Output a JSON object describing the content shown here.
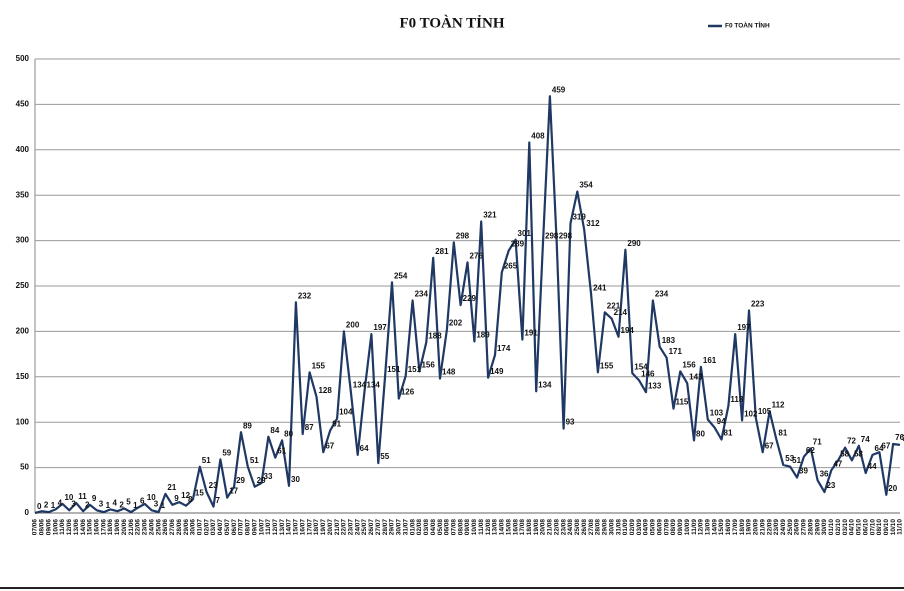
{
  "chart_data": {
    "type": "line",
    "title": "F0 TOÀN TỈNH",
    "categories": [
      "07/06",
      "08/06",
      "09/06",
      "10/06",
      "11/06",
      "12/06",
      "13/06",
      "14/06",
      "15/06",
      "16/06",
      "17/06",
      "18/06",
      "19/06",
      "20/06",
      "21/06",
      "22/06",
      "23/06",
      "24/06",
      "25/06",
      "26/06",
      "27/06",
      "28/06",
      "29/06",
      "30/06",
      "01/07",
      "02/07",
      "03/07",
      "04/07",
      "05/07",
      "06/07",
      "07/07",
      "08/07",
      "09/07",
      "10/07",
      "11/07",
      "12/07",
      "13/07",
      "14/07",
      "15/07",
      "16/07",
      "17/07",
      "18/07",
      "19/07",
      "20/07",
      "21/07",
      "22/07",
      "23/07",
      "24/07",
      "25/07",
      "26/07",
      "27/07",
      "28/07",
      "29/07",
      "30/07",
      "31/07",
      "01/08",
      "02/08",
      "03/08",
      "04/08",
      "05/08",
      "06/08",
      "07/08",
      "08/08",
      "09/08",
      "10/08",
      "11/08",
      "12/08",
      "13/08",
      "14/08",
      "15/08",
      "16/08",
      "17/08",
      "18/08",
      "19/08",
      "20/08",
      "21/08",
      "22/08",
      "23/08",
      "24/08",
      "25/08",
      "26/08",
      "27/08",
      "28/08",
      "29/08",
      "30/08",
      "31/08",
      "01/09",
      "02/09",
      "03/09",
      "04/09",
      "05/09",
      "06/09",
      "07/09",
      "08/09",
      "09/09",
      "10/09",
      "11/09",
      "12/09",
      "13/09",
      "14/09",
      "15/09",
      "16/09",
      "17/09",
      "18/09",
      "19/09",
      "20/09",
      "21/09",
      "22/09",
      "23/09",
      "24/09",
      "25/09",
      "26/09",
      "27/09",
      "28/09",
      "29/09",
      "30/09",
      "01/10",
      "02/10",
      "03/10",
      "04/10",
      "05/10",
      "06/10",
      "07/10",
      "08/10",
      "09/10",
      "10/10",
      "11/10"
    ],
    "series": [
      {
        "name": "F0 TOÀN TỈNH",
        "color": "#1f3864",
        "values": [
          0,
          2,
          1,
          4,
          10,
          3,
          11,
          2,
          9,
          3,
          1,
          4,
          2,
          5,
          1,
          6,
          10,
          3,
          1,
          21,
          9,
          12,
          8,
          15,
          51,
          23,
          7,
          59,
          17,
          29,
          89,
          51,
          29,
          33,
          84,
          61,
          80,
          30,
          232,
          87,
          155,
          128,
          67,
          91,
          104,
          200,
          134,
          64,
          134,
          197,
          55,
          151,
          254,
          126,
          151,
          234,
          156,
          188,
          281,
          148,
          202,
          298,
          229,
          276,
          189,
          321,
          149,
          174,
          265,
          289,
          301,
          191,
          408,
          134,
          298,
          459,
          298,
          93,
          319,
          354,
          312,
          241,
          155,
          221,
          214,
          194,
          290,
          154,
          146,
          133,
          234,
          183,
          171,
          115,
          156,
          143,
          80,
          161,
          103,
          94,
          81,
          118,
          197,
          102,
          223,
          105,
          67,
          112,
          81,
          53,
          51,
          39,
          62,
          71,
          36,
          23,
          47,
          58,
          72,
          58,
          74,
          44,
          64,
          67,
          20,
          76,
          75
        ]
      }
    ],
    "ylim": [
      0,
      500
    ],
    "yticks": [
      0,
      50,
      100,
      150,
      200,
      250,
      300,
      350,
      400,
      450,
      500
    ],
    "grid": true,
    "legend": "top-right"
  }
}
